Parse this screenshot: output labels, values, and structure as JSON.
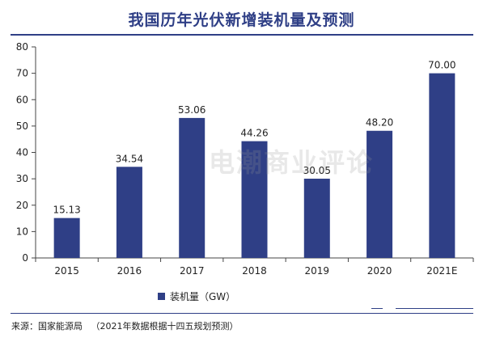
{
  "title": "我国历年光伏新增装机量及预测",
  "watermark": "电潮商业评论",
  "source": "来源：国家能源局   （2021年数据根据十四五规划预测）",
  "colors": {
    "bar": "#2f3f86",
    "title": "#2f3f86"
  },
  "chart_data": {
    "type": "bar",
    "categories": [
      "2015",
      "2016",
      "2017",
      "2018",
      "2019",
      "2020",
      "2021E"
    ],
    "values": [
      15.13,
      34.54,
      53.06,
      44.26,
      30.05,
      48.2,
      70.0
    ],
    "value_labels": [
      "15.13",
      "34.54",
      "53.06",
      "44.26",
      "30.05",
      "48.20",
      "70.00"
    ],
    "series": [
      {
        "name": "装机量（GW）",
        "values": [
          15.13,
          34.54,
          53.06,
          44.26,
          30.05,
          48.2,
          70.0
        ]
      }
    ],
    "yticks": [
      "0",
      "10",
      "20",
      "30",
      "40",
      "50",
      "60",
      "70",
      "80"
    ],
    "ylim": [
      0,
      80
    ],
    "grid": false,
    "legend": "bottom-left"
  }
}
